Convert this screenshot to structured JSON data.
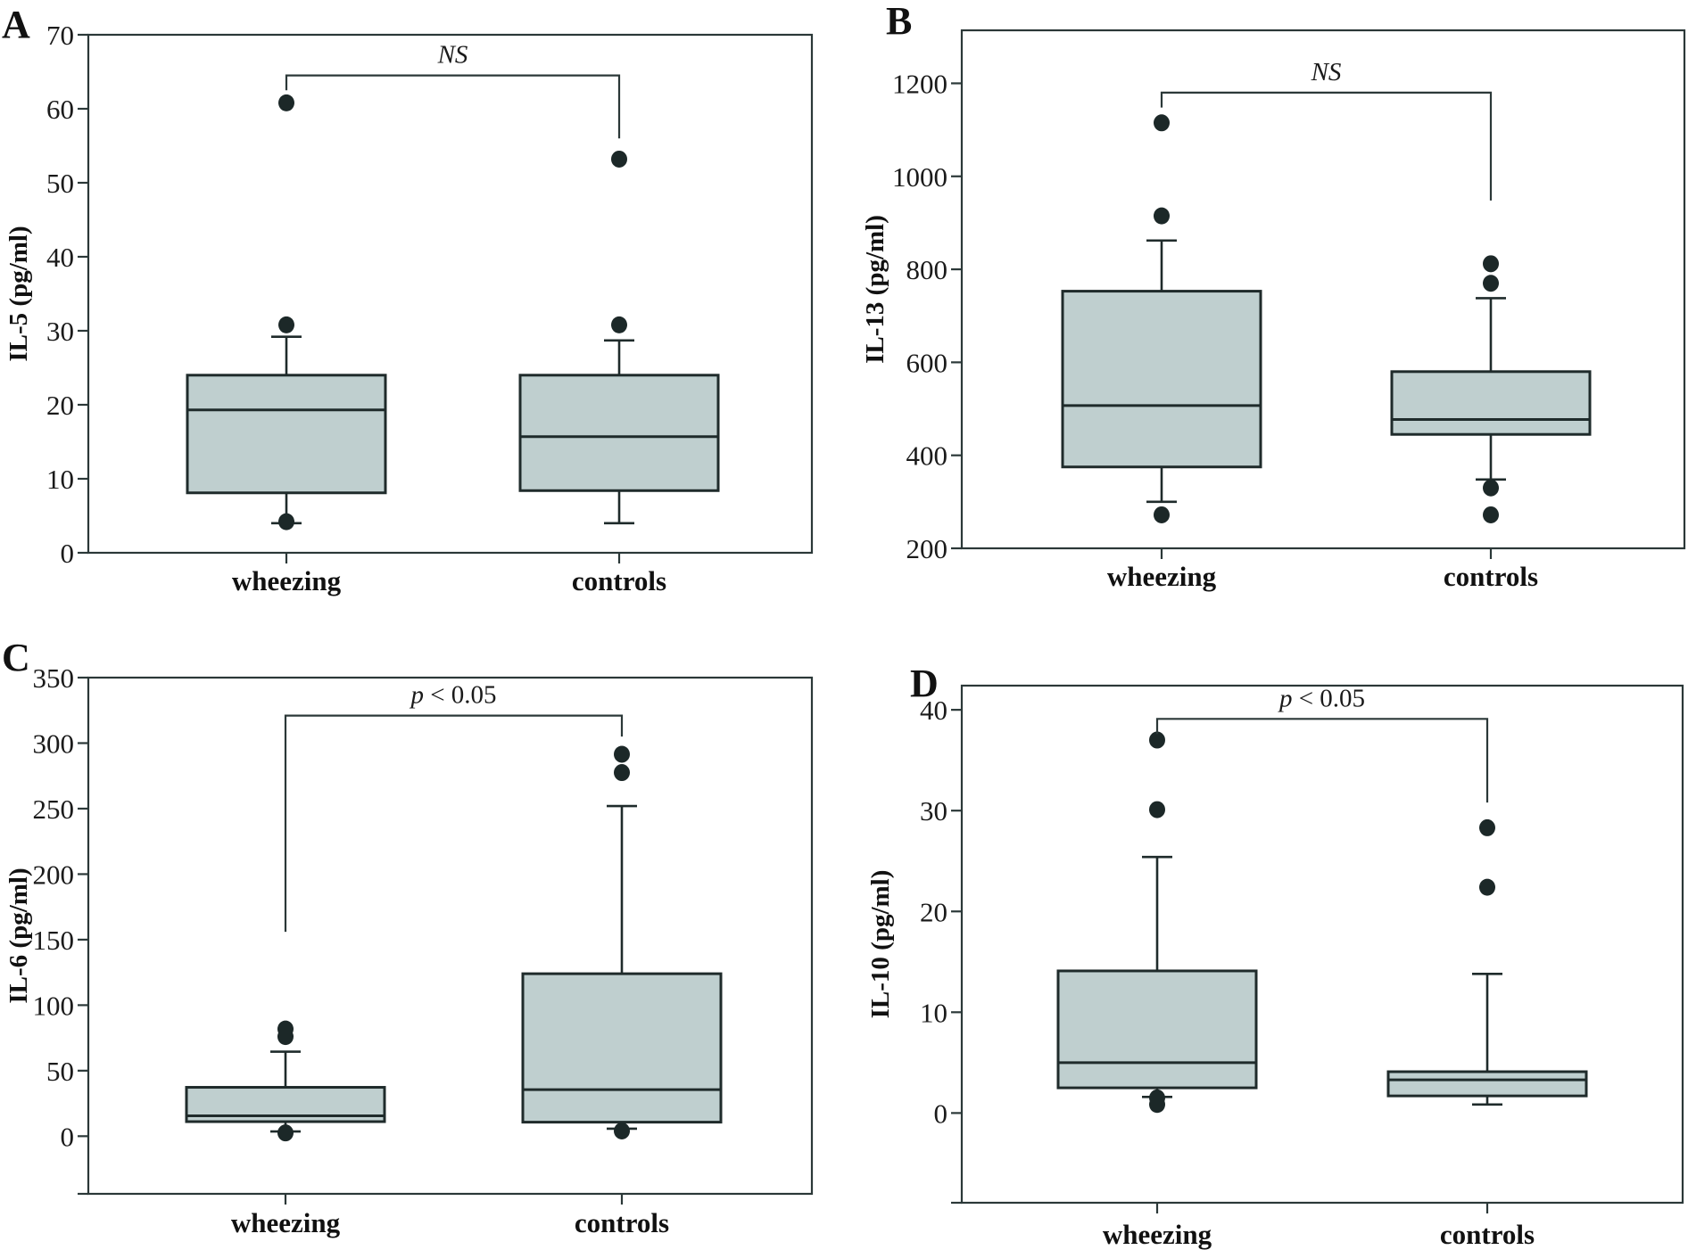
{
  "chart_data": [
    {
      "panel": "A",
      "type": "box",
      "title": "",
      "xlabel": "",
      "ylabel": "IL-5 (pg/ml)",
      "ylim": [
        0,
        70
      ],
      "yticks": [
        0,
        10,
        20,
        30,
        40,
        50,
        60,
        70
      ],
      "categories": [
        "wheezing",
        "controls"
      ],
      "grid": false,
      "boxes": [
        {
          "name": "wheezing",
          "whisker_low": 4.0,
          "q1": 8.1,
          "median": 19.3,
          "q3": 24.0,
          "whisker_high": 29.2,
          "outliers": [
            60.8,
            30.8,
            4.2
          ]
        },
        {
          "name": "controls",
          "whisker_low": 4.0,
          "q1": 8.4,
          "median": 15.7,
          "q3": 24.0,
          "whisker_high": 28.7,
          "outliers": [
            53.2,
            30.8
          ]
        }
      ],
      "significance": {
        "label": "NS",
        "italic_all": true,
        "bracket_top": 64.5,
        "left_end": 62.5,
        "right_end": 56.0
      }
    },
    {
      "panel": "B",
      "type": "box",
      "title": "",
      "xlabel": "",
      "ylabel": "IL-13 (pg/ml)",
      "ylim": [
        200,
        1314
      ],
      "yticks": [
        200,
        400,
        600,
        800,
        1000,
        1200
      ],
      "categories": [
        "wheezing",
        "controls"
      ],
      "grid": false,
      "boxes": [
        {
          "name": "wheezing",
          "whisker_low": 300,
          "q1": 375,
          "median": 507,
          "q3": 753,
          "whisker_high": 862,
          "outliers": [
            1115,
            915,
            272
          ]
        },
        {
          "name": "controls",
          "whisker_low": 348,
          "q1": 445,
          "median": 477,
          "q3": 580,
          "whisker_high": 738,
          "outliers": [
            812,
            770,
            330,
            272
          ]
        }
      ],
      "significance": {
        "label": "NS",
        "italic_all": true,
        "bracket_top": 1180,
        "left_end": 1148,
        "right_end": 948
      }
    },
    {
      "panel": "C",
      "type": "box",
      "title": "",
      "xlabel": "",
      "ylabel": "IL-6 (pg/ml)",
      "ylim": [
        -44,
        350
      ],
      "yticks": [
        0,
        50,
        100,
        150,
        200,
        250,
        300,
        350
      ],
      "categories": [
        "wheezing",
        "controls"
      ],
      "grid": false,
      "boxes": [
        {
          "name": "wheezing",
          "whisker_low": 3.6,
          "q1": 11.1,
          "median": 15.5,
          "q3": 37.3,
          "whisker_high": 64.5,
          "outliers": [
            81.8,
            76.0,
            2.5
          ]
        },
        {
          "name": "controls",
          "whisker_low": 5.7,
          "q1": 10.7,
          "median": 35.5,
          "q3": 124.0,
          "whisker_high": 252.0,
          "outliers": [
            291.5,
            277.5,
            4.0
          ]
        }
      ],
      "significance": {
        "label_italic": "p",
        "label_rest": " < 0.05",
        "bracket_top": 321,
        "left_end": 156,
        "right_end": 305
      }
    },
    {
      "panel": "D",
      "type": "box",
      "title": "",
      "xlabel": "",
      "ylabel": "IL-10 (pg/ml)",
      "ylim": [
        -8.9,
        42.4
      ],
      "yticks": [
        0,
        10,
        20,
        30,
        40
      ],
      "categories": [
        "wheezing",
        "controls"
      ],
      "grid": false,
      "boxes": [
        {
          "name": "wheezing",
          "whisker_low": 1.6,
          "q1": 2.5,
          "median": 5.0,
          "q3": 14.1,
          "whisker_high": 25.4,
          "outliers": [
            37.0,
            30.1,
            1.5,
            0.85
          ]
        },
        {
          "name": "controls",
          "whisker_low": 0.85,
          "q1": 1.7,
          "median": 3.3,
          "q3": 4.1,
          "whisker_high": 13.8,
          "outliers": [
            28.3,
            22.4
          ]
        }
      ],
      "significance": {
        "label_italic": "p",
        "label_rest": " < 0.05",
        "bracket_top": 39.1,
        "left_end": 37.6,
        "right_end": 30.8
      }
    }
  ],
  "colors": {
    "box_fill": "#bfcfcf",
    "line": "#1f2b2b",
    "outlier": "#1c2828"
  }
}
